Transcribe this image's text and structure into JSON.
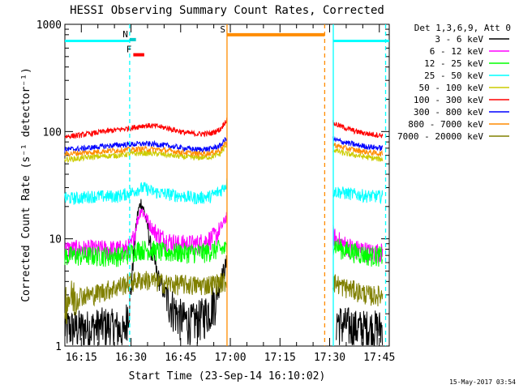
{
  "chart_data": {
    "type": "line",
    "title": "HESSI Observing Summary Count Rates, Corrected",
    "xlabel": "Start Time (23-Sep-14 16:10:02)",
    "ylabel": "Corrected Count Rate (s⁻¹ detector⁻¹)",
    "yscale": "log",
    "ylim": [
      1,
      1000
    ],
    "xlim_minutes": [
      10.03,
      108
    ],
    "x_unit": "minutes after 16:00 UT",
    "x_ticks": [
      {
        "value": 15,
        "label": "16:15"
      },
      {
        "value": 30,
        "label": "16:30"
      },
      {
        "value": 45,
        "label": "16:45"
      },
      {
        "value": 60,
        "label": "17:00"
      },
      {
        "value": 75,
        "label": "17:15"
      },
      {
        "value": 90,
        "label": "17:30"
      },
      {
        "value": 105,
        "label": "17:45"
      }
    ],
    "y_ticks": [
      {
        "value": 1,
        "label": "1"
      },
      {
        "value": 10,
        "label": "10"
      },
      {
        "value": 100,
        "label": "100"
      },
      {
        "value": 1000,
        "label": "1000"
      }
    ],
    "legend_header": "Det 1,3,6,9, Att 0",
    "legend_position": "right",
    "series": [
      {
        "name": "3 - 6 keV",
        "color": "#000000",
        "x": [
          10,
          18,
          22,
          26,
          28,
          30,
          31,
          32,
          33,
          34,
          35,
          36,
          38,
          40,
          42,
          44,
          46,
          48,
          50,
          52,
          54,
          56,
          58,
          59
        ],
        "values": [
          1.5,
          1.5,
          1.6,
          1.5,
          1.3,
          3,
          8,
          17,
          22,
          18,
          13,
          8,
          4.5,
          3.2,
          2.5,
          2,
          1.8,
          1.7,
          1.8,
          2,
          2.3,
          3,
          5,
          6
        ],
        "x2": [
          92,
          94,
          96,
          98,
          100,
          102,
          104,
          106
        ],
        "values2": [
          1.8,
          1.6,
          1.6,
          1.5,
          1.5,
          1.5,
          1.5,
          1.5
        ]
      },
      {
        "name": "6 - 12 keV",
        "color": "#ff00ff",
        "x": [
          10,
          14,
          18,
          22,
          26,
          28,
          30,
          31,
          32,
          33,
          34,
          35,
          36,
          38,
          40,
          42,
          44,
          46,
          48,
          50,
          52,
          54,
          56,
          58,
          59
        ],
        "values": [
          8,
          8,
          8,
          8,
          8,
          8,
          8.5,
          11,
          15,
          19,
          17,
          15,
          13,
          11,
          10,
          9.5,
          9,
          9,
          9,
          9,
          9.5,
          10,
          11,
          14,
          17
        ],
        "x2": [
          91,
          92,
          94,
          96,
          98,
          100,
          102,
          104,
          106
        ],
        "values2": [
          11,
          10,
          9,
          8.5,
          8,
          8,
          7.5,
          7.5,
          7.5
        ]
      },
      {
        "name": "12 - 25 keV",
        "color": "#00ff00",
        "x": [
          10,
          16,
          22,
          28,
          32,
          36,
          40,
          44,
          48,
          52,
          56,
          59
        ],
        "values": [
          7,
          7,
          7,
          7,
          8,
          8,
          7.5,
          7.5,
          7.5,
          7.5,
          8,
          8
        ],
        "x2": [
          91,
          94,
          98,
          102,
          106
        ],
        "values2": [
          9,
          8,
          7.5,
          7,
          7
        ]
      },
      {
        "name": "25 - 50 keV",
        "color": "#00ffff",
        "x": [
          10,
          14,
          18,
          22,
          26,
          30,
          32,
          34,
          36,
          38,
          42,
          46,
          50,
          54,
          57,
          59
        ],
        "values": [
          24,
          24,
          25,
          25,
          25,
          27,
          29,
          30,
          28,
          27,
          26,
          25,
          24,
          25,
          28,
          33
        ],
        "x2": [
          91,
          94,
          98,
          102,
          106
        ],
        "values2": [
          28,
          27,
          26,
          25,
          25
        ]
      },
      {
        "name": "50 - 100 keV",
        "color": "#cccc00",
        "x": [
          10,
          14,
          18,
          22,
          26,
          30,
          34,
          38,
          42,
          46,
          50,
          54,
          57,
          59
        ],
        "values": [
          55,
          56,
          58,
          59,
          60,
          62,
          63,
          62,
          60,
          58,
          57,
          58,
          62,
          75
        ],
        "x2": [
          91,
          94,
          98,
          102,
          106
        ],
        "values2": [
          68,
          63,
          60,
          57,
          55
        ]
      },
      {
        "name": "100 - 300 keV",
        "color": "#ff0000",
        "x": [
          10,
          14,
          18,
          22,
          26,
          30,
          34,
          38,
          42,
          46,
          50,
          54,
          57,
          59
        ],
        "values": [
          90,
          92,
          96,
          100,
          104,
          108,
          114,
          112,
          106,
          98,
          95,
          96,
          105,
          130
        ],
        "x2": [
          91,
          94,
          98,
          102,
          106
        ],
        "values2": [
          120,
          110,
          100,
          95,
          92
        ]
      },
      {
        "name": "300 - 800 keV",
        "color": "#0000ff",
        "x": [
          10,
          14,
          18,
          22,
          26,
          30,
          34,
          38,
          42,
          46,
          50,
          54,
          57,
          59
        ],
        "values": [
          68,
          69,
          71,
          73,
          75,
          76,
          77,
          76,
          73,
          70,
          68,
          69,
          74,
          88
        ],
        "x2": [
          91,
          94,
          98,
          102,
          106
        ],
        "values2": [
          85,
          80,
          75,
          72,
          70
        ]
      },
      {
        "name": "800 - 7000 keV",
        "color": "#ff8c00",
        "x": [
          10,
          14,
          18,
          22,
          26,
          30,
          34,
          38,
          42,
          46,
          50,
          54,
          57,
          59
        ],
        "values": [
          62,
          63,
          64,
          66,
          67,
          68,
          69,
          68,
          66,
          64,
          62,
          63,
          67,
          80
        ],
        "x2": [
          91,
          94,
          98,
          102,
          106
        ],
        "values2": [
          76,
          71,
          67,
          64,
          62
        ]
      },
      {
        "name": "7000 - 20000 keV",
        "color": "#808000",
        "x": [
          10,
          14,
          18,
          22,
          26,
          30,
          34,
          38,
          42,
          46,
          50,
          54,
          58,
          59
        ],
        "values": [
          2.8,
          3,
          3,
          3.3,
          3.6,
          4,
          4.2,
          4,
          3.8,
          3.8,
          3.7,
          3.8,
          4,
          4
        ],
        "x2": [
          91,
          94,
          98,
          102,
          106
        ],
        "values2": [
          4,
          3.6,
          3.3,
          3,
          3
        ]
      }
    ],
    "annotations": [
      {
        "label": "N",
        "color": "#00cccc",
        "x_start": 29.6,
        "x_end": 31.5,
        "y": 720
      },
      {
        "label": "F",
        "color": "#ff0000",
        "x_start": 30.7,
        "x_end": 34.0,
        "y": 520
      },
      {
        "label": "S",
        "color": "#ff8c00",
        "x_start": 59.0,
        "x_end": 88.5,
        "y": 800
      }
    ],
    "night_bars": [
      {
        "x_start": 10.03,
        "x_end": 29.6
      },
      {
        "x_start": 91.1,
        "x_end": 108
      }
    ],
    "vertical_lines": [
      {
        "x": 29.6,
        "color": "#00ffff",
        "style": "dashed"
      },
      {
        "x": 59.0,
        "color": "#ff8c00",
        "style": "solid"
      },
      {
        "x": 88.5,
        "color": "#ff8c00",
        "style": "dashed"
      },
      {
        "x": 91.1,
        "color": "#00ffff",
        "style": "solid"
      },
      {
        "x": 106.9,
        "color": "#00ffff",
        "style": "dashed"
      }
    ],
    "timestamp": "15-May-2017 03:54"
  }
}
